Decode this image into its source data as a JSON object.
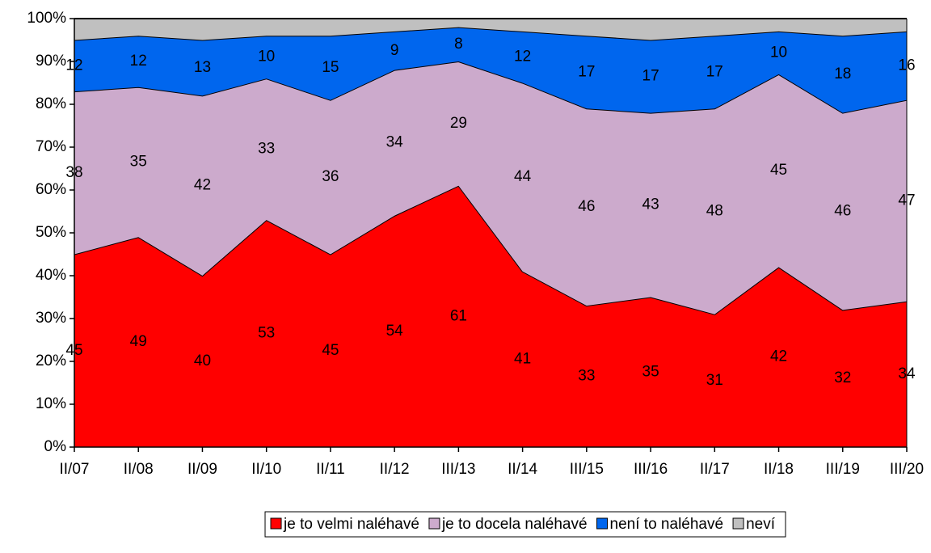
{
  "chart_data": {
    "type": "stacked_area",
    "categories": [
      "II/07",
      "II/08",
      "II/09",
      "II/10",
      "II/11",
      "II/12",
      "III/13",
      "II/14",
      "III/15",
      "III/16",
      "II/17",
      "II/18",
      "III/19",
      "III/20"
    ],
    "series": [
      {
        "name": "je to velmi naléhavé",
        "color": "#ff0000",
        "data_labels": true,
        "values": [
          45,
          49,
          40,
          53,
          45,
          54,
          61,
          41,
          33,
          35,
          31,
          42,
          32,
          34
        ]
      },
      {
        "name": "je to docela naléhavé",
        "color": "#ccaacc",
        "data_labels": true,
        "values": [
          38,
          35,
          42,
          33,
          36,
          34,
          29,
          44,
          46,
          43,
          48,
          45,
          46,
          47
        ]
      },
      {
        "name": "není to naléhavé",
        "color": "#0066ee",
        "data_labels": true,
        "values": [
          12,
          12,
          13,
          10,
          15,
          9,
          8,
          12,
          17,
          17,
          17,
          10,
          18,
          16
        ]
      },
      {
        "name": "neví",
        "color": "#c0c0c0",
        "data_labels": false,
        "values": [
          5,
          4,
          5,
          4,
          4,
          3,
          2,
          3,
          4,
          5,
          4,
          3,
          4,
          3
        ]
      }
    ],
    "ylim": [
      0,
      100
    ],
    "yticks": [
      {
        "value": 0,
        "label": "0%"
      },
      {
        "value": 10,
        "label": "10%"
      },
      {
        "value": 20,
        "label": "20%"
      },
      {
        "value": 30,
        "label": "30%"
      },
      {
        "value": 40,
        "label": "40%"
      },
      {
        "value": 50,
        "label": "50%"
      },
      {
        "value": 60,
        "label": "60%"
      },
      {
        "value": 70,
        "label": "70%"
      },
      {
        "value": 80,
        "label": "80%"
      },
      {
        "value": 90,
        "label": "90%"
      },
      {
        "value": 100,
        "label": "100%"
      }
    ],
    "legend": "bottom"
  }
}
